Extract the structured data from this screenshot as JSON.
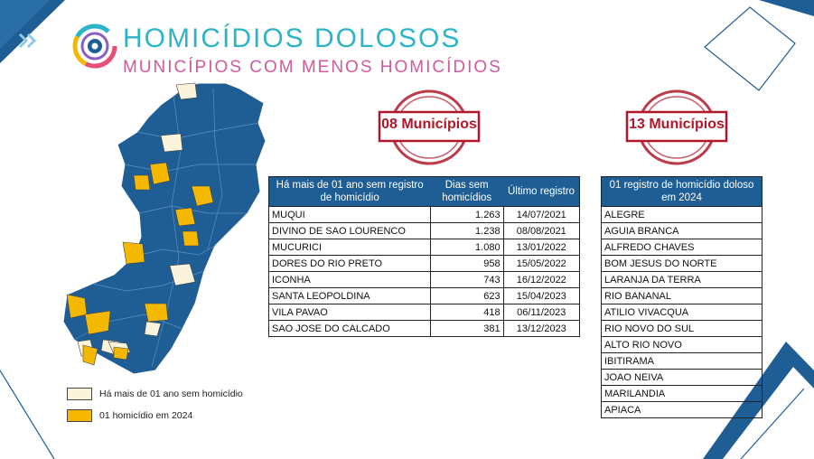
{
  "header": {
    "title": "HOMICÍDIOS DOLOSOS",
    "subtitle": "MUNICÍPIOS COM MENOS HOMICÍDIOS"
  },
  "colors": {
    "navy": "#1f5e95",
    "map_fill": "#1f5e95",
    "cream": "#fbf3dc",
    "yellow": "#f5b800",
    "stamp_red": "#b0172a",
    "title_teal": "#2db4c8",
    "subtitle_pink": "#d05a9b"
  },
  "stamps": {
    "left": "08 Municípios",
    "right": "13 Municípios"
  },
  "table_left": {
    "headers": [
      "Há mais de 01 ano sem registro de homicídio",
      "Dias sem homicídios",
      "Último registro"
    ],
    "rows": [
      {
        "municipio": "MUQUI",
        "dias": "1.263",
        "ultimo": "14/07/2021"
      },
      {
        "municipio": "DIVINO DE SAO LOURENCO",
        "dias": "1.238",
        "ultimo": "08/08/2021"
      },
      {
        "municipio": "MUCURICI",
        "dias": "1.080",
        "ultimo": "13/01/2022"
      },
      {
        "municipio": "DORES DO RIO PRETO",
        "dias": "958",
        "ultimo": "15/05/2022"
      },
      {
        "municipio": "ICONHA",
        "dias": "743",
        "ultimo": "16/12/2022"
      },
      {
        "municipio": "SANTA LEOPOLDINA",
        "dias": "623",
        "ultimo": "15/04/2023"
      },
      {
        "municipio": "VILA PAVAO",
        "dias": "418",
        "ultimo": "06/11/2023"
      },
      {
        "municipio": "SAO JOSE DO CALCADO",
        "dias": "381",
        "ultimo": "13/12/2023"
      }
    ]
  },
  "table_right": {
    "header": "01 registro de homicídio doloso em 2024",
    "rows": [
      "ALEGRE",
      "AGUIA BRANCA",
      "ALFREDO CHAVES",
      "BOM JESUS DO NORTE",
      "LARANJA DA TERRA",
      "RIO BANANAL",
      "ATILIO VIVACQUA",
      "RIO NOVO DO SUL",
      "ALTO RIO NOVO",
      "IBITIRAMA",
      "JOAO NEIVA",
      "MARILANDIA",
      "APIACA"
    ]
  },
  "legend": {
    "items": [
      {
        "label": "Há mais de 01 ano sem homicídio",
        "color": "#fbf3dc"
      },
      {
        "label": "01 homicídio em 2024",
        "color": "#f5b800"
      }
    ]
  },
  "icons": {
    "corner": "double-chevron-right-icon",
    "logo": "circular-eye-logo"
  }
}
